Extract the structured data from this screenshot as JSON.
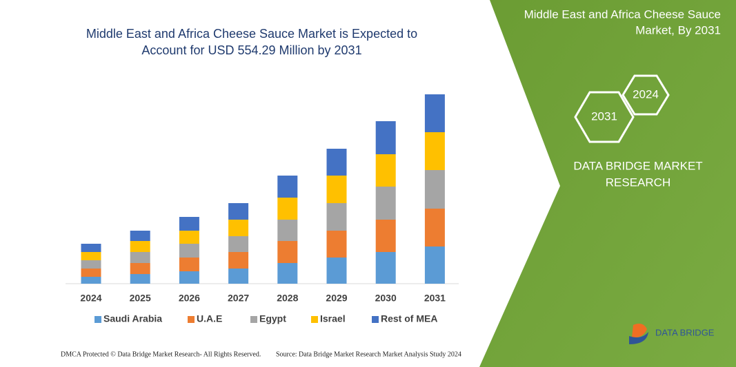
{
  "chart_data": {
    "type": "stacked_bar",
    "title": [
      "Middle East and Africa Cheese Sauce Market is Expected to",
      "Account for USD 554.29 Million by 2031"
    ],
    "categories": [
      "2024",
      "2025",
      "2026",
      "2027",
      "2028",
      "2029",
      "2030",
      "2031"
    ],
    "series": [
      {
        "name": "Saudi Arabia",
        "color": "#5b9bd5",
        "values": [
          10,
          14,
          18,
          22,
          30,
          38,
          46,
          54
        ]
      },
      {
        "name": "U.A.E",
        "color": "#ed7d31",
        "values": [
          12,
          16,
          20,
          24,
          32,
          39,
          47,
          55
        ]
      },
      {
        "name": "Egypt",
        "color": "#a5a5a5",
        "values": [
          12,
          16,
          20,
          23,
          31,
          40,
          48,
          56
        ]
      },
      {
        "name": "Israel",
        "color": "#ffc000",
        "values": [
          12,
          16,
          19,
          24,
          32,
          40,
          47,
          55
        ]
      },
      {
        "name": "Rest of MEA",
        "color": "#4472c4",
        "values": [
          12,
          15,
          20,
          24,
          32,
          39,
          48,
          55
        ]
      }
    ]
  },
  "side_panel": {
    "title": [
      "Middle East and Africa Cheese Sauce",
      "Market, By 2031"
    ],
    "hexagons": [
      "2031",
      "2024"
    ],
    "brand": [
      "DATA BRIDGE MARKET",
      "RESEARCH"
    ],
    "logo": "DATA BRIDGE"
  },
  "footer": {
    "left": "DMCA Protected © Data Bridge Market Research-  All Rights Reserved.",
    "right": "Source: Data Bridge Market Research  Market Analysis Study 2024"
  }
}
